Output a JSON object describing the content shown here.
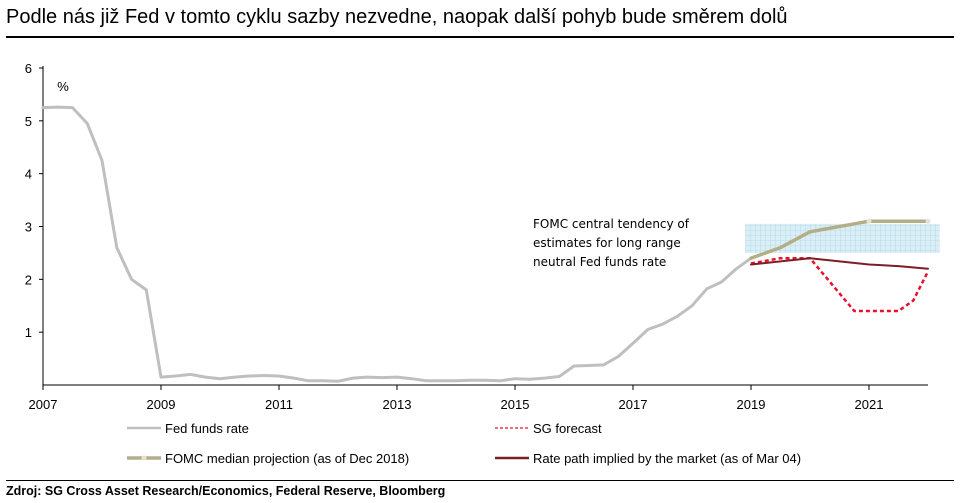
{
  "title": "Podle nás již Fed v tomto cyklu sazby nezvedne, naopak další pohyb bude směrem dolů",
  "source": "Zdroj: SG Cross Asset Research/Economics, Federal Reserve, Bloomberg",
  "chart_data": {
    "type": "line",
    "ylabel": "%",
    "xlim": [
      2007,
      2022
    ],
    "ylim": [
      0,
      6
    ],
    "x_ticks": [
      "2007",
      "2009",
      "2011",
      "2013",
      "2015",
      "2017",
      "2019",
      "2021"
    ],
    "y_ticks": [
      "1",
      "2",
      "3",
      "4",
      "5",
      "6"
    ],
    "grid": false,
    "legend_position": "bottom",
    "annotation": {
      "lines": [
        "FOMC central tendency of",
        "estimates for long range",
        "neutral Fed funds rate"
      ],
      "band": [
        2.5,
        3.05
      ],
      "band_x": [
        2018.9,
        2022.2
      ]
    },
    "series": [
      {
        "name": "Fed funds rate",
        "color": "#bfbfbf",
        "style": "solid",
        "x": [
          2007.0,
          2007.25,
          2007.5,
          2007.75,
          2008.0,
          2008.25,
          2008.5,
          2008.75,
          2009.0,
          2009.25,
          2009.5,
          2009.75,
          2010.0,
          2010.25,
          2010.5,
          2010.75,
          2011.0,
          2011.25,
          2011.5,
          2011.75,
          2012.0,
          2012.25,
          2012.5,
          2012.75,
          2013.0,
          2013.25,
          2013.5,
          2013.75,
          2014.0,
          2014.25,
          2014.5,
          2014.75,
          2015.0,
          2015.25,
          2015.5,
          2015.75,
          2016.0,
          2016.25,
          2016.5,
          2016.75,
          2017.0,
          2017.25,
          2017.5,
          2017.75,
          2018.0,
          2018.25,
          2018.5,
          2018.75,
          2019.0
        ],
        "y": [
          5.25,
          5.26,
          5.25,
          4.95,
          4.25,
          2.6,
          2.0,
          1.8,
          0.15,
          0.17,
          0.2,
          0.15,
          0.12,
          0.15,
          0.17,
          0.18,
          0.17,
          0.13,
          0.08,
          0.08,
          0.07,
          0.13,
          0.15,
          0.14,
          0.15,
          0.12,
          0.08,
          0.08,
          0.08,
          0.09,
          0.09,
          0.08,
          0.12,
          0.11,
          0.13,
          0.16,
          0.36,
          0.37,
          0.38,
          0.54,
          0.79,
          1.05,
          1.15,
          1.3,
          1.5,
          1.82,
          1.95,
          2.2,
          2.4
        ]
      },
      {
        "name": "SG forecast",
        "color": "#e8102a",
        "style": "dashed",
        "x": [
          2019.0,
          2019.5,
          2020.0,
          2020.75,
          2021.0,
          2021.5,
          2021.75,
          2022.0
        ],
        "y": [
          2.3,
          2.4,
          2.4,
          1.4,
          1.4,
          1.4,
          1.6,
          2.15
        ]
      },
      {
        "name": "FOMC median projection (as of Dec 2018)",
        "color": "#b3ae86",
        "style": "dotted-to-solid",
        "x": [
          2019.0,
          2019.5,
          2020.0,
          2020.5,
          2021.0,
          2021.5,
          2022.0
        ],
        "y": [
          2.4,
          2.6,
          2.9,
          3.0,
          3.1,
          3.1,
          3.1
        ]
      },
      {
        "name": "Rate path implied by the market (as of Mar 04)",
        "color": "#7b1e27",
        "style": "solid",
        "x": [
          2019.0,
          2019.5,
          2020.0,
          2020.5,
          2021.0,
          2021.5,
          2022.0
        ],
        "y": [
          2.28,
          2.34,
          2.4,
          2.34,
          2.28,
          2.25,
          2.2
        ]
      }
    ]
  }
}
